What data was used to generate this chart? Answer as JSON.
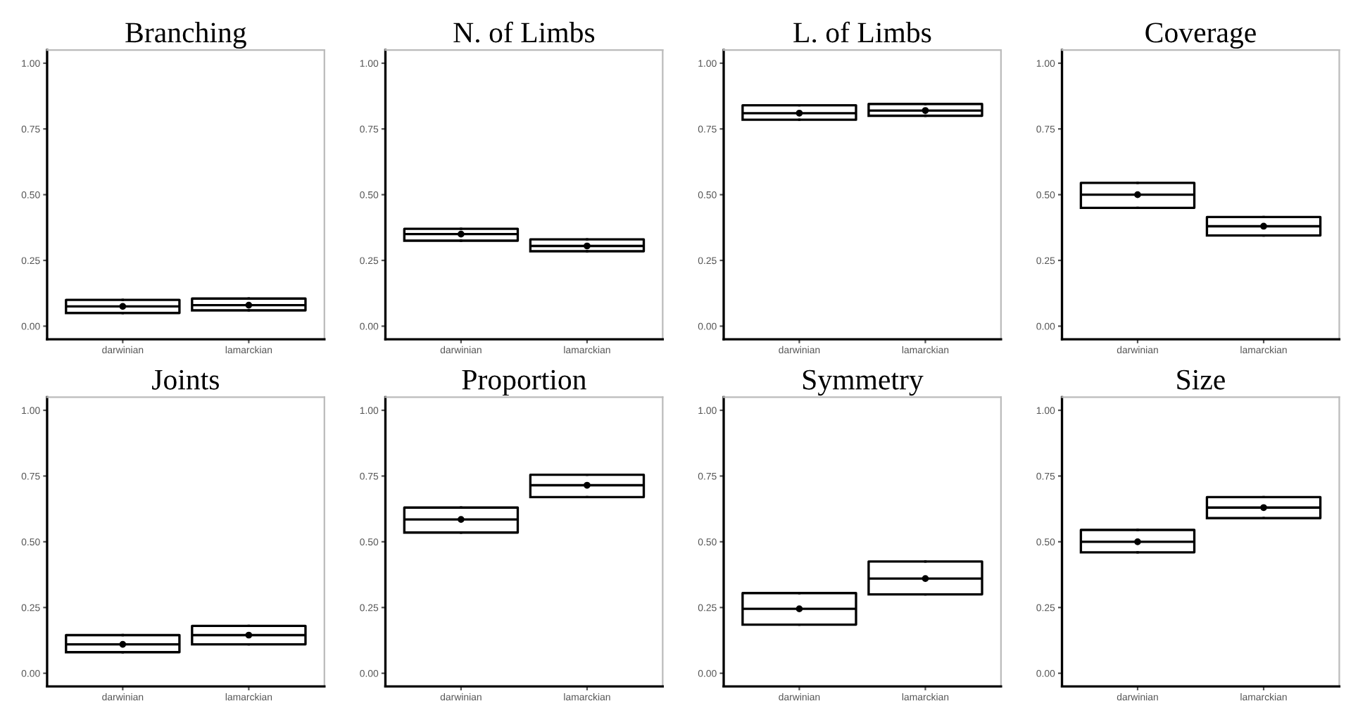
{
  "chart_data": [
    {
      "type": "box",
      "title": "Branching",
      "categories": [
        "darwinian",
        "lamarckian"
      ],
      "boxes": [
        {
          "low": 0.05,
          "q1": 0.05,
          "median": 0.075,
          "q3": 0.1,
          "high": 0.1,
          "mean": 0.075
        },
        {
          "low": 0.06,
          "q1": 0.06,
          "median": 0.08,
          "q3": 0.105,
          "high": 0.105,
          "mean": 0.08
        }
      ],
      "ylim": [
        -0.05,
        1.05
      ],
      "yticks": [
        {
          "value": 0,
          "label": "0.00"
        },
        {
          "value": 0.25,
          "label": "0.25"
        },
        {
          "value": 0.5,
          "label": "0.50"
        },
        {
          "value": 0.75,
          "label": "0.75"
        },
        {
          "value": 1,
          "label": "1.00"
        }
      ],
      "grid": false
    },
    {
      "type": "box",
      "title": "N. of Limbs",
      "categories": [
        "darwinian",
        "lamarckian"
      ],
      "boxes": [
        {
          "low": 0.325,
          "q1": 0.325,
          "median": 0.35,
          "q3": 0.37,
          "high": 0.37,
          "mean": 0.35
        },
        {
          "low": 0.285,
          "q1": 0.285,
          "median": 0.305,
          "q3": 0.33,
          "high": 0.33,
          "mean": 0.305
        }
      ],
      "ylim": [
        -0.05,
        1.05
      ],
      "yticks": [
        {
          "value": 0,
          "label": "0.00"
        },
        {
          "value": 0.25,
          "label": "0.25"
        },
        {
          "value": 0.5,
          "label": "0.50"
        },
        {
          "value": 0.75,
          "label": "0.75"
        },
        {
          "value": 1,
          "label": "1.00"
        }
      ],
      "grid": false
    },
    {
      "type": "box",
      "title": "L. of Limbs",
      "categories": [
        "darwinian",
        "lamarckian"
      ],
      "boxes": [
        {
          "low": 0.785,
          "q1": 0.785,
          "median": 0.81,
          "q3": 0.84,
          "high": 0.84,
          "mean": 0.81
        },
        {
          "low": 0.8,
          "q1": 0.8,
          "median": 0.82,
          "q3": 0.845,
          "high": 0.845,
          "mean": 0.82
        }
      ],
      "ylim": [
        -0.05,
        1.05
      ],
      "yticks": [
        {
          "value": 0,
          "label": "0.00"
        },
        {
          "value": 0.25,
          "label": "0.25"
        },
        {
          "value": 0.5,
          "label": "0.50"
        },
        {
          "value": 0.75,
          "label": "0.75"
        },
        {
          "value": 1,
          "label": "1.00"
        }
      ],
      "grid": false
    },
    {
      "type": "box",
      "title": "Coverage",
      "categories": [
        "darwinian",
        "lamarckian"
      ],
      "boxes": [
        {
          "low": 0.45,
          "q1": 0.45,
          "median": 0.5,
          "q3": 0.545,
          "high": 0.545,
          "mean": 0.5
        },
        {
          "low": 0.345,
          "q1": 0.345,
          "median": 0.38,
          "q3": 0.415,
          "high": 0.415,
          "mean": 0.38
        }
      ],
      "ylim": [
        -0.05,
        1.05
      ],
      "yticks": [
        {
          "value": 0,
          "label": "0.00"
        },
        {
          "value": 0.25,
          "label": "0.25"
        },
        {
          "value": 0.5,
          "label": "0.50"
        },
        {
          "value": 0.75,
          "label": "0.75"
        },
        {
          "value": 1,
          "label": "1.00"
        }
      ],
      "grid": false
    },
    {
      "type": "box",
      "title": "Joints",
      "categories": [
        "darwinian",
        "lamarckian"
      ],
      "boxes": [
        {
          "low": 0.08,
          "q1": 0.08,
          "median": 0.11,
          "q3": 0.145,
          "high": 0.145,
          "mean": 0.11
        },
        {
          "low": 0.11,
          "q1": 0.11,
          "median": 0.145,
          "q3": 0.18,
          "high": 0.18,
          "mean": 0.145
        }
      ],
      "ylim": [
        -0.05,
        1.05
      ],
      "yticks": [
        {
          "value": 0,
          "label": "0.00"
        },
        {
          "value": 0.25,
          "label": "0.25"
        },
        {
          "value": 0.5,
          "label": "0.50"
        },
        {
          "value": 0.75,
          "label": "0.75"
        },
        {
          "value": 1,
          "label": "1.00"
        }
      ],
      "grid": false
    },
    {
      "type": "box",
      "title": "Proportion",
      "categories": [
        "darwinian",
        "lamarckian"
      ],
      "boxes": [
        {
          "low": 0.535,
          "q1": 0.535,
          "median": 0.585,
          "q3": 0.63,
          "high": 0.63,
          "mean": 0.585
        },
        {
          "low": 0.67,
          "q1": 0.67,
          "median": 0.715,
          "q3": 0.755,
          "high": 0.755,
          "mean": 0.715
        }
      ],
      "ylim": [
        -0.05,
        1.05
      ],
      "yticks": [
        {
          "value": 0,
          "label": "0.00"
        },
        {
          "value": 0.25,
          "label": "0.25"
        },
        {
          "value": 0.5,
          "label": "0.50"
        },
        {
          "value": 0.75,
          "label": "0.75"
        },
        {
          "value": 1,
          "label": "1.00"
        }
      ],
      "grid": false
    },
    {
      "type": "box",
      "title": "Symmetry",
      "categories": [
        "darwinian",
        "lamarckian"
      ],
      "boxes": [
        {
          "low": 0.185,
          "q1": 0.185,
          "median": 0.245,
          "q3": 0.305,
          "high": 0.305,
          "mean": 0.245
        },
        {
          "low": 0.3,
          "q1": 0.3,
          "median": 0.36,
          "q3": 0.425,
          "high": 0.425,
          "mean": 0.36
        }
      ],
      "ylim": [
        -0.05,
        1.05
      ],
      "yticks": [
        {
          "value": 0,
          "label": "0.00"
        },
        {
          "value": 0.25,
          "label": "0.25"
        },
        {
          "value": 0.5,
          "label": "0.50"
        },
        {
          "value": 0.75,
          "label": "0.75"
        },
        {
          "value": 1,
          "label": "1.00"
        }
      ],
      "grid": false
    },
    {
      "type": "box",
      "title": "Size",
      "categories": [
        "darwinian",
        "lamarckian"
      ],
      "boxes": [
        {
          "low": 0.46,
          "q1": 0.46,
          "median": 0.5,
          "q3": 0.545,
          "high": 0.545,
          "mean": 0.5
        },
        {
          "low": 0.59,
          "q1": 0.59,
          "median": 0.63,
          "q3": 0.67,
          "high": 0.67,
          "mean": 0.63
        }
      ],
      "ylim": [
        -0.05,
        1.05
      ],
      "yticks": [
        {
          "value": 0,
          "label": "0.00"
        },
        {
          "value": 0.25,
          "label": "0.25"
        },
        {
          "value": 0.5,
          "label": "0.50"
        },
        {
          "value": 0.75,
          "label": "0.75"
        },
        {
          "value": 1,
          "label": "1.00"
        }
      ],
      "grid": false
    }
  ]
}
